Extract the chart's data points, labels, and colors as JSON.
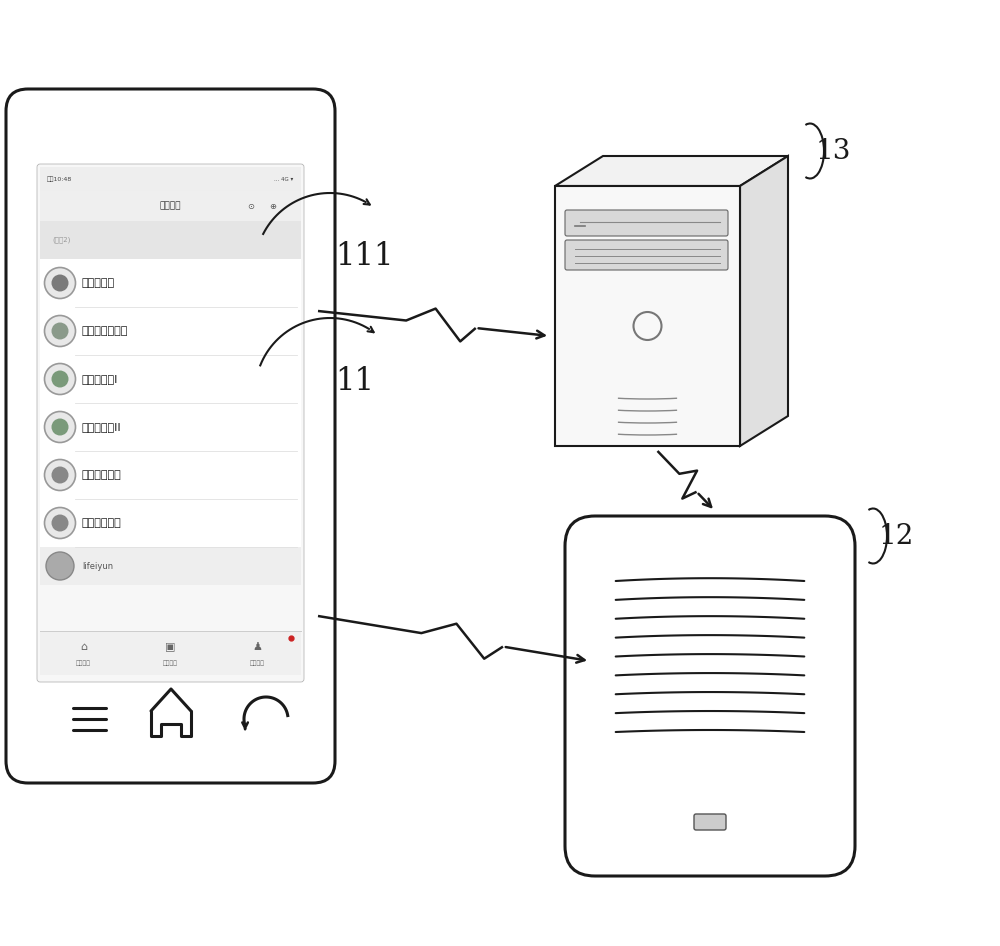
{
  "bg_color": "#ffffff",
  "line_color": "#1a1a1a",
  "labels": {
    "phone": "11",
    "phone_sub": "111",
    "server": "13",
    "router": "12"
  },
  "menu_items": [
    "智能开发板",
    "智能空气净化器",
    "智能净水器I",
    "智能净水器II",
    "智能移动电源",
    "智能电视盒子"
  ],
  "bottom_nav": [
    "我的设备",
    "小米路由",
    "个人中心"
  ],
  "header_title": "我的设备",
  "user_name": "lifeiyun",
  "status_bar_left": "上午10:48",
  "status_bar_right": "4G",
  "first_row_text": "(设备2)"
}
